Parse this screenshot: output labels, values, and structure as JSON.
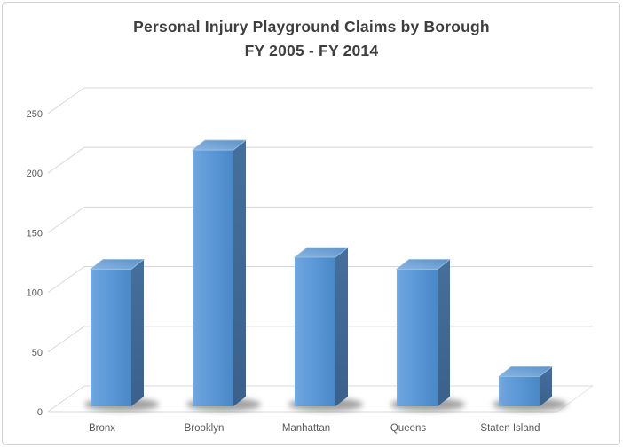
{
  "window": {
    "background": "#ffffff",
    "border_color": "#d2d2d2"
  },
  "title": {
    "line1": "Personal Injury Playground Claims by Borough",
    "line2": "FY 2005 - FY 2014",
    "color": "#3e3e3e"
  },
  "chart_data": {
    "type": "bar",
    "style": "3d-column",
    "title": "Personal Injury Playground Claims by Borough FY 2005 - FY 2014",
    "categories": [
      "Bronx",
      "Brooklyn",
      "Manhattan",
      "Queens",
      "Staten Island"
    ],
    "values": [
      115,
      215,
      125,
      115,
      25
    ],
    "xlabel": "",
    "ylabel": "",
    "y_ticks": [
      0,
      50,
      100,
      150,
      200,
      250
    ],
    "ylim": [
      0,
      270
    ],
    "grid": true,
    "legend": false,
    "colors": {
      "bar_front": "#5996d6",
      "bar_front_light": "#79ace1",
      "bar_front_dark": "#4a87c5",
      "bar_top_light": "#8ab5e3",
      "bar_top_dark": "#5e92c7",
      "bar_side_light": "#456f9c",
      "bar_side_dark": "#3a618c",
      "gridline": "#d9d9d9",
      "tick_text": "#595959",
      "shadow": "#555555"
    }
  }
}
